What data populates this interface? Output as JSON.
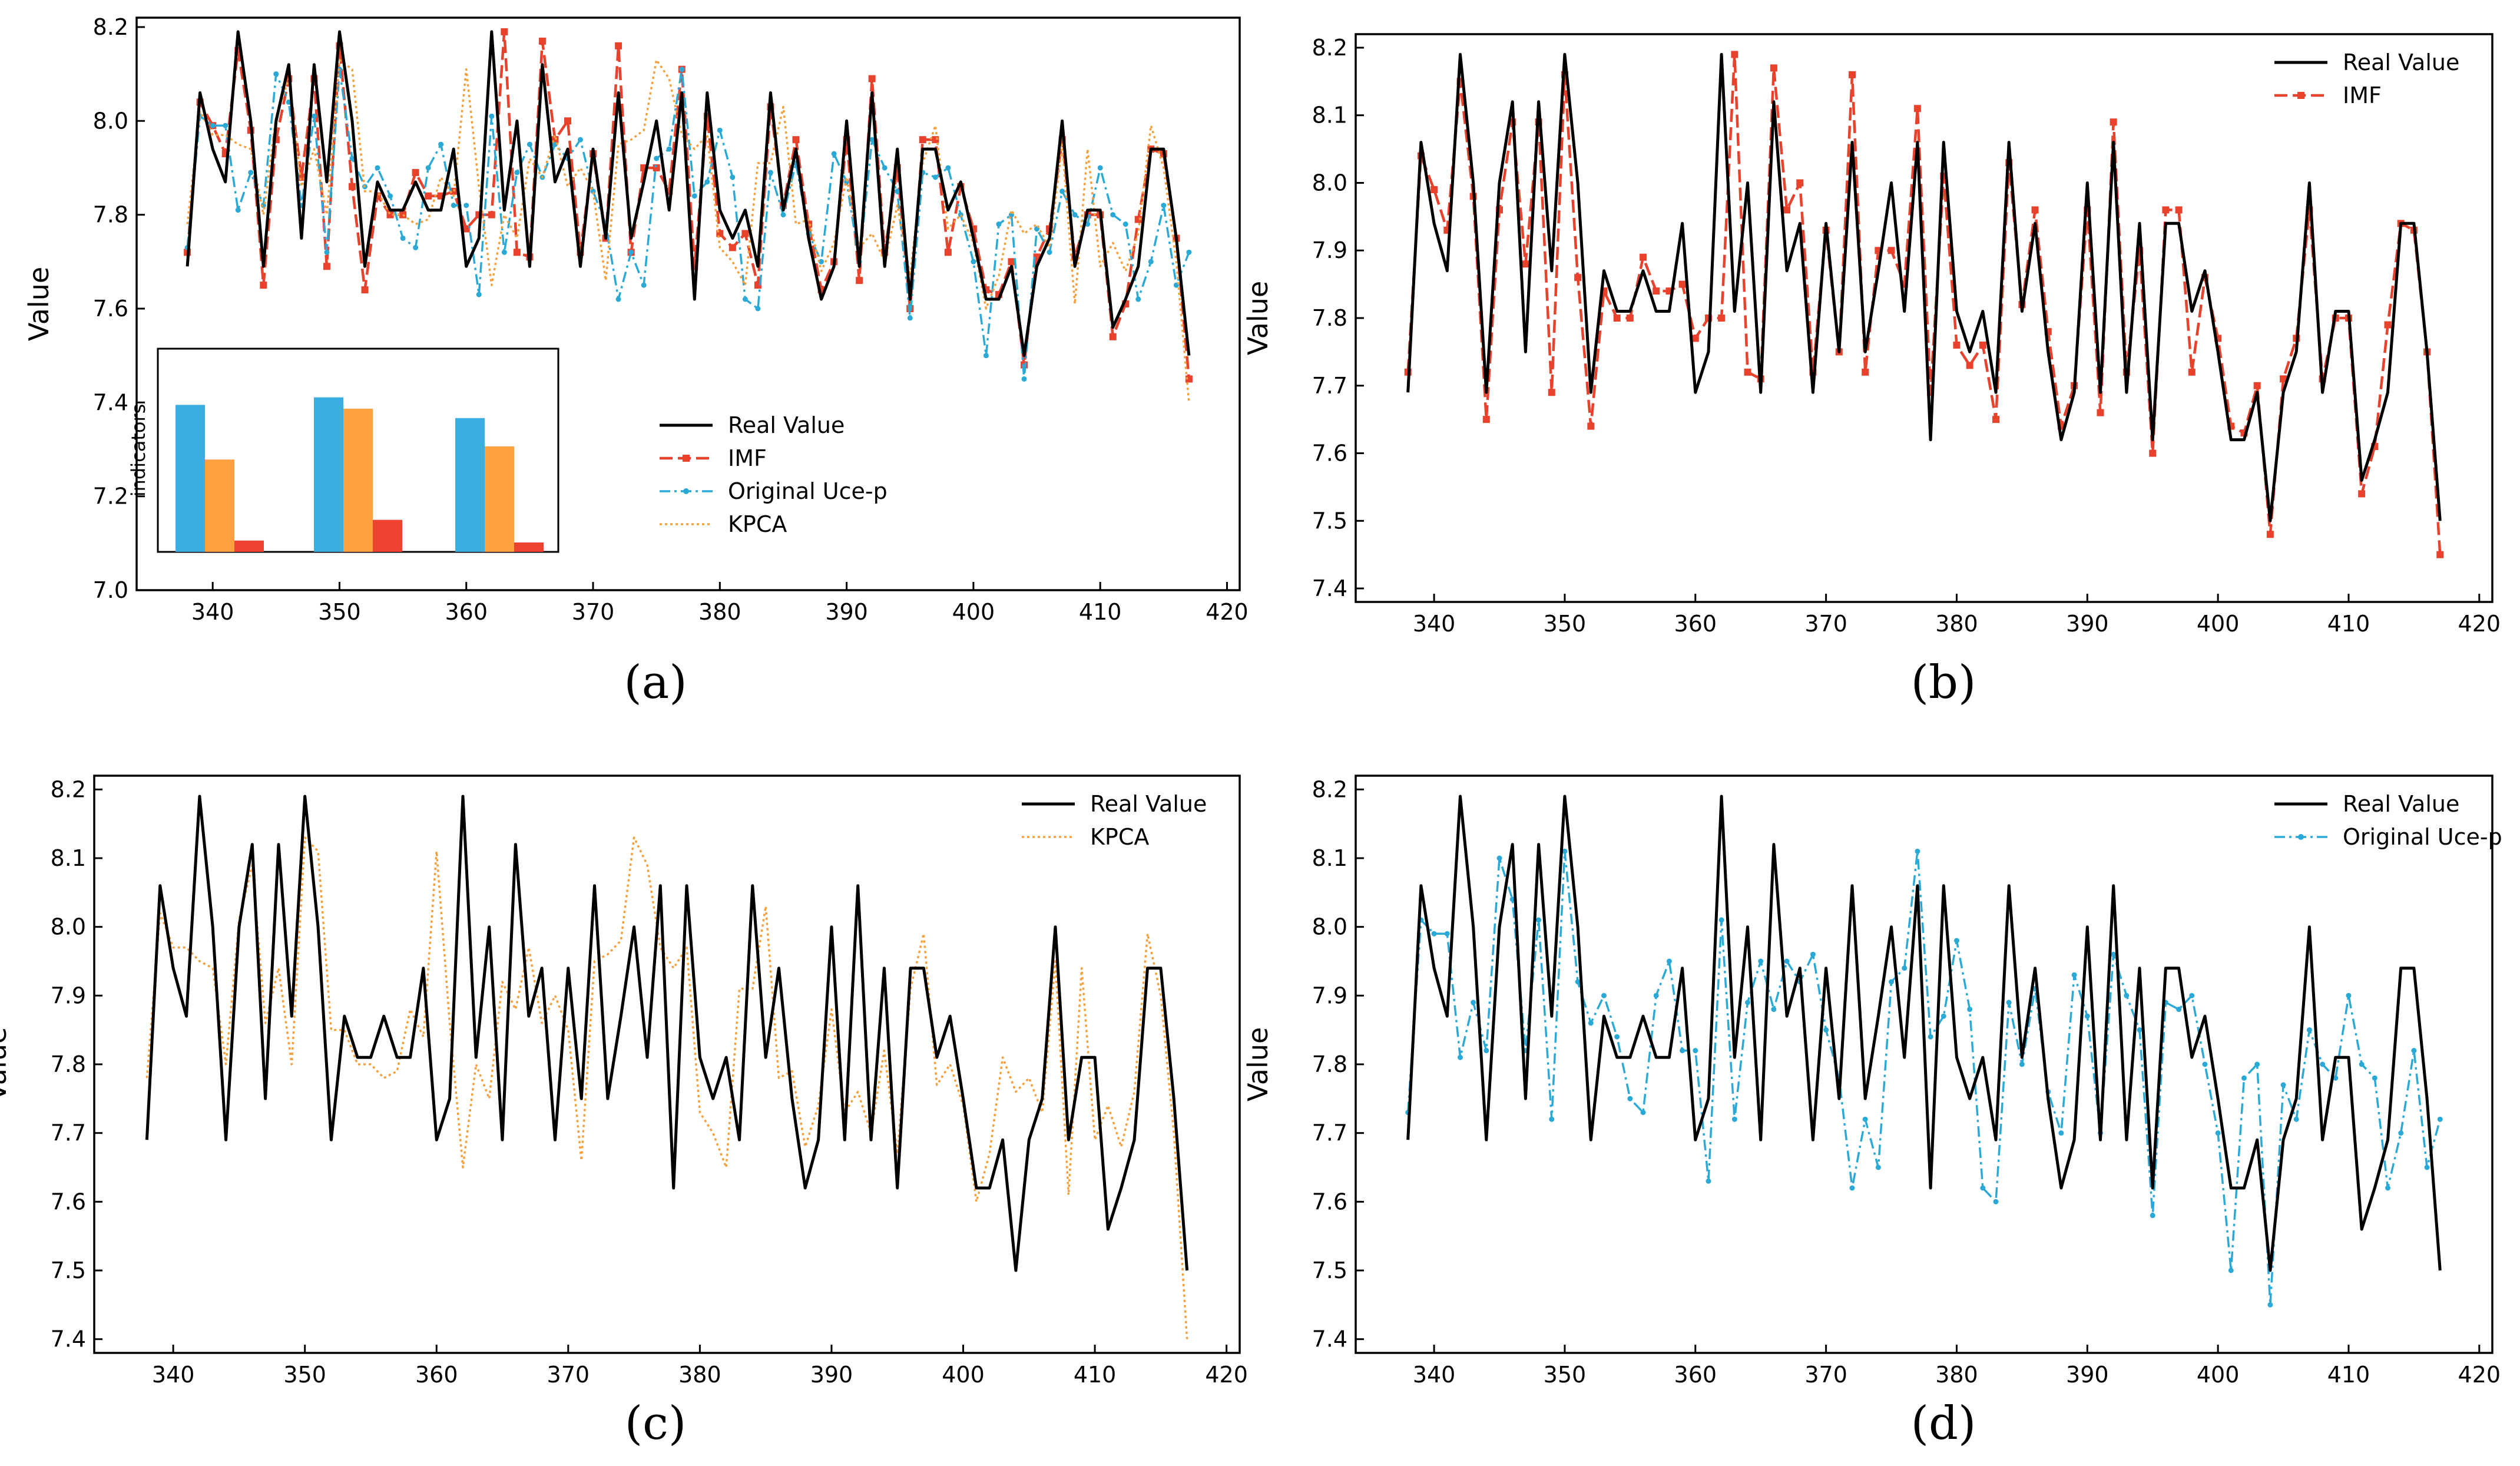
{
  "figure": {
    "colors": {
      "real": "#000000",
      "imf": "#e8412c",
      "uce": "#2aa9d6",
      "kpca": "#f5a03c",
      "inset_blue": "#3aaee0",
      "inset_orange": "#ffa040",
      "inset_red": "#ee4230"
    },
    "series_names": {
      "real": "Real Value",
      "imf": "IMF",
      "uce": "Original Uce-p",
      "kpca": "KPCA"
    },
    "inset_label": "indicators"
  },
  "chart_data": [
    {
      "id": "a",
      "caption": "(a)",
      "type": "line",
      "ylabel": "Value",
      "xlim": [
        334,
        421
      ],
      "ylim": [
        7.0,
        8.22
      ],
      "xticks": [
        340,
        350,
        360,
        370,
        380,
        390,
        400,
        410,
        420
      ],
      "yticks": [
        7.0,
        7.2,
        7.4,
        7.6,
        7.8,
        8.0,
        8.2
      ],
      "series": [
        "real",
        "imf",
        "uce",
        "kpca"
      ],
      "legend": "lower-right",
      "inset": {
        "type": "bar",
        "ylabel": "indicators",
        "groups": [
          [
            0.78,
            0.49,
            0.06
          ],
          [
            0.82,
            0.76,
            0.17
          ],
          [
            0.71,
            0.56,
            0.05
          ]
        ]
      }
    },
    {
      "id": "b",
      "caption": "(b)",
      "type": "line",
      "ylabel": "Value",
      "xlim": [
        334,
        421
      ],
      "ylim": [
        7.38,
        8.22
      ],
      "xticks": [
        340,
        350,
        360,
        370,
        380,
        390,
        400,
        410,
        420
      ],
      "yticks": [
        7.4,
        7.5,
        7.6,
        7.7,
        7.8,
        7.9,
        8.0,
        8.1,
        8.2
      ],
      "series": [
        "real",
        "imf"
      ],
      "legend": "top-right"
    },
    {
      "id": "c",
      "caption": "(c)",
      "type": "line",
      "ylabel": "Value",
      "xlim": [
        334,
        421
      ],
      "ylim": [
        7.38,
        8.22
      ],
      "xticks": [
        340,
        350,
        360,
        370,
        380,
        390,
        400,
        410,
        420
      ],
      "yticks": [
        7.4,
        7.5,
        7.6,
        7.7,
        7.8,
        7.9,
        8.0,
        8.1,
        8.2
      ],
      "series": [
        "real",
        "kpca"
      ],
      "legend": "top-right"
    },
    {
      "id": "d",
      "caption": "(d)",
      "type": "line",
      "ylabel": "Value",
      "xlim": [
        334,
        421
      ],
      "ylim": [
        7.38,
        8.22
      ],
      "xticks": [
        340,
        350,
        360,
        370,
        380,
        390,
        400,
        410,
        420
      ],
      "yticks": [
        7.4,
        7.5,
        7.6,
        7.7,
        7.8,
        7.9,
        8.0,
        8.1,
        8.2
      ],
      "series": [
        "real",
        "uce"
      ],
      "legend": "top-right"
    }
  ],
  "series_data": {
    "x_start": 338,
    "real": [
      7.69,
      8.06,
      7.94,
      7.87,
      8.19,
      8.0,
      7.69,
      8.0,
      8.12,
      7.75,
      8.12,
      7.87,
      8.19,
      8.0,
      7.69,
      7.87,
      7.81,
      7.81,
      7.87,
      7.81,
      7.81,
      7.94,
      7.69,
      7.75,
      8.19,
      7.81,
      8.0,
      7.69,
      8.12,
      7.87,
      7.94,
      7.69,
      7.94,
      7.75,
      8.06,
      7.75,
      7.87,
      8.0,
      7.81,
      8.06,
      7.62,
      8.06,
      7.81,
      7.75,
      7.81,
      7.69,
      8.06,
      7.81,
      7.94,
      7.75,
      7.62,
      7.69,
      8.0,
      7.69,
      8.06,
      7.69,
      7.94,
      7.62,
      7.94,
      7.94,
      7.81,
      7.87,
      7.75,
      7.62,
      7.62,
      7.69,
      7.5,
      7.69,
      7.75,
      8.0,
      7.69,
      7.81,
      7.81,
      7.56,
      7.62,
      7.69,
      7.94,
      7.94,
      7.75,
      7.5
    ],
    "imf": [
      7.72,
      8.04,
      7.99,
      7.93,
      8.15,
      7.98,
      7.65,
      7.96,
      8.09,
      7.88,
      8.09,
      7.69,
      8.16,
      7.86,
      7.64,
      7.84,
      7.8,
      7.8,
      7.89,
      7.84,
      7.84,
      7.85,
      7.77,
      7.8,
      7.8,
      8.19,
      7.72,
      7.71,
      8.17,
      7.96,
      8.0,
      7.72,
      7.93,
      7.75,
      8.16,
      7.72,
      7.9,
      7.9,
      7.85,
      8.11,
      7.69,
      8.01,
      7.76,
      7.73,
      7.76,
      7.65,
      8.03,
      7.82,
      7.96,
      7.78,
      7.64,
      7.7,
      7.96,
      7.66,
      8.09,
      7.72,
      7.9,
      7.6,
      7.96,
      7.96,
      7.72,
      7.86,
      7.77,
      7.64,
      7.63,
      7.7,
      7.48,
      7.71,
      7.77,
      7.96,
      7.71,
      7.8,
      7.8,
      7.54,
      7.61,
      7.79,
      7.94,
      7.93,
      7.75,
      7.45
    ],
    "uce": [
      7.73,
      8.01,
      7.99,
      7.99,
      7.81,
      7.89,
      7.82,
      8.1,
      8.04,
      7.82,
      8.01,
      7.72,
      8.11,
      7.92,
      7.86,
      7.9,
      7.84,
      7.75,
      7.73,
      7.9,
      7.95,
      7.82,
      7.82,
      7.63,
      8.01,
      7.72,
      7.89,
      7.95,
      7.88,
      7.95,
      7.92,
      7.96,
      7.85,
      7.78,
      7.62,
      7.72,
      7.65,
      7.92,
      7.94,
      8.11,
      7.84,
      7.87,
      7.98,
      7.88,
      7.62,
      7.6,
      7.89,
      7.8,
      7.91,
      7.76,
      7.7,
      7.93,
      7.87,
      7.7,
      7.96,
      7.9,
      7.85,
      7.58,
      7.89,
      7.88,
      7.9,
      7.8,
      7.7,
      7.5,
      7.78,
      7.8,
      7.45,
      7.77,
      7.72,
      7.85,
      7.8,
      7.78,
      7.9,
      7.8,
      7.78,
      7.62,
      7.7,
      7.82,
      7.65,
      7.72
    ],
    "kpca": [
      7.78,
      8.02,
      7.97,
      7.97,
      7.95,
      7.94,
      7.8,
      8.01,
      8.09,
      7.86,
      7.94,
      7.8,
      8.13,
      8.11,
      7.85,
      7.85,
      7.8,
      7.8,
      7.78,
      7.79,
      7.88,
      7.84,
      8.11,
      7.86,
      7.65,
      7.8,
      7.75,
      7.92,
      7.88,
      7.97,
      7.86,
      7.9,
      7.85,
      7.66,
      7.95,
      7.96,
      7.98,
      8.13,
      8.09,
      7.97,
      7.94,
      7.97,
      7.73,
      7.7,
      7.65,
      7.91,
      7.91,
      8.03,
      7.78,
      7.79,
      7.68,
      7.74,
      7.88,
      7.73,
      7.76,
      7.7,
      7.82,
      7.67,
      7.91,
      7.99,
      7.77,
      7.8,
      7.74,
      7.6,
      7.67,
      7.81,
      7.76,
      7.78,
      7.73,
      7.95,
      7.61,
      7.94,
      7.69,
      7.74,
      7.68,
      7.76,
      7.99,
      7.9,
      7.7,
      7.4
    ]
  }
}
